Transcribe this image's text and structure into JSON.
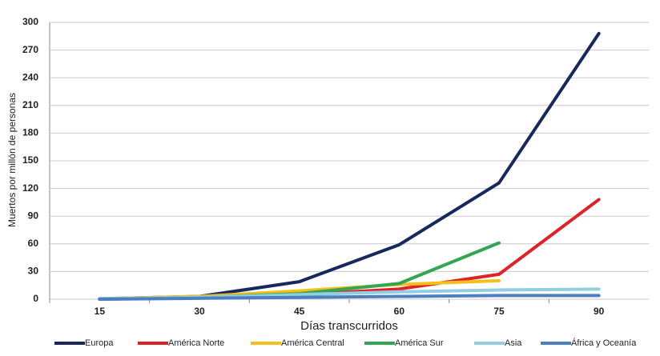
{
  "chart_data": {
    "type": "line",
    "x_label": "Días transcurridos",
    "y_label": "Muertos por millón de personas",
    "categories": [
      "15",
      "30",
      "45",
      "60",
      "75",
      "90"
    ],
    "series": [
      {
        "name": "Europa",
        "color": "#16285e",
        "values": [
          0.5,
          3,
          19,
          59,
          126,
          288
        ]
      },
      {
        "name": "América Norte",
        "color": "#e02128",
        "values": [
          0.3,
          2,
          5,
          11,
          27,
          108
        ]
      },
      {
        "name": "América Central",
        "color": "#f7bf1a",
        "values": [
          0.5,
          3,
          9,
          16,
          20,
          null
        ]
      },
      {
        "name": "América Sur",
        "color": "#34a651",
        "values": [
          0,
          2,
          6,
          17,
          61,
          null
        ]
      },
      {
        "name": "Asia",
        "color": "#92cde0",
        "values": [
          0.5,
          2,
          5,
          8,
          10,
          11
        ]
      },
      {
        "name": "África y Oceanía",
        "color": "#4a7fc1",
        "values": [
          0,
          1,
          2,
          3,
          4,
          4
        ]
      }
    ],
    "ylim": [
      0,
      300
    ],
    "yticks": [
      0,
      30,
      60,
      90,
      120,
      150,
      180,
      210,
      240,
      270,
      300
    ],
    "grid": true
  }
}
